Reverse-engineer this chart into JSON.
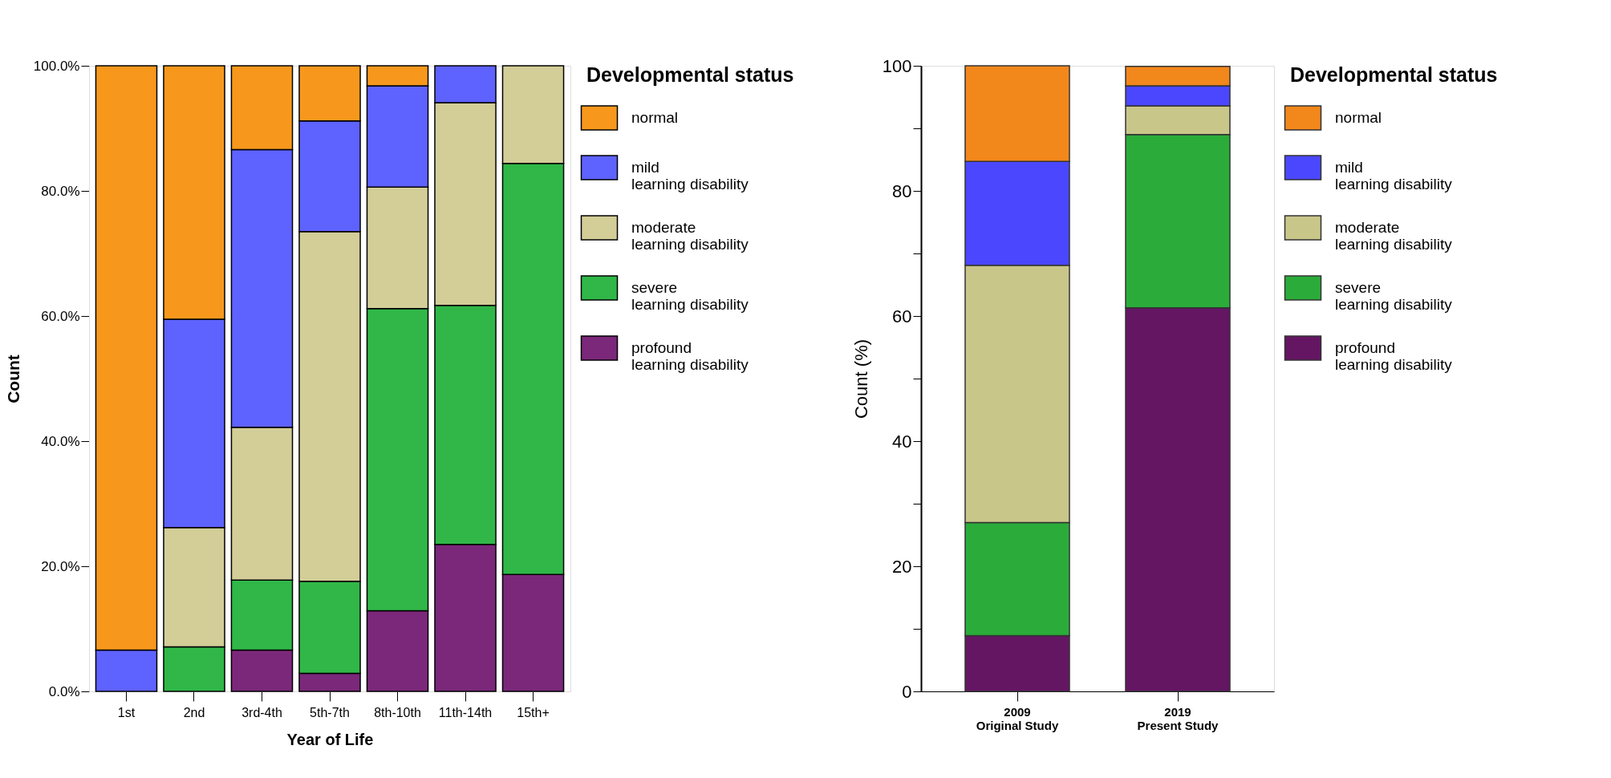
{
  "chart_data": [
    {
      "type": "bar",
      "stacked": true,
      "xlabel": "Year of Life",
      "ylabel": "Count",
      "legend_title": "Developmental status",
      "legend": "right",
      "grid": false,
      "categories": [
        "1st",
        "2nd",
        "3rd-4th",
        "5th-7th",
        "8th-10th",
        "11th-14th",
        "15th+"
      ],
      "ylim": [
        0,
        100
      ],
      "yticks": [
        {
          "value": 0,
          "label": "0.0%"
        },
        {
          "value": 20,
          "label": "20.0%"
        },
        {
          "value": 40,
          "label": "40.0%"
        },
        {
          "value": 60,
          "label": "60.0%"
        },
        {
          "value": 80,
          "label": "80.0%"
        },
        {
          "value": 100,
          "label": "100.0%"
        }
      ],
      "series": [
        {
          "name": "profound\nlearning disability",
          "color": "#7b287a",
          "values": [
            null,
            null,
            6.6,
            2.9,
            12.9,
            23.5,
            18.7
          ]
        },
        {
          "name": "severe\nlearning disability",
          "color": "#30b748",
          "values": [
            null,
            7.1,
            11.2,
            14.7,
            48.3,
            38.2,
            65.7
          ]
        },
        {
          "name": "moderate\nlearning disability",
          "color": "#d3cd98",
          "values": [
            null,
            19.1,
            24.4,
            55.9,
            19.4,
            32.4,
            15.6
          ]
        },
        {
          "name": "mild\nlearning disability",
          "color": "#5e62fe",
          "values": [
            6.6,
            33.3,
            44.4,
            17.7,
            16.2,
            5.9,
            null
          ]
        },
        {
          "name": "normal",
          "color": "#f7981d",
          "values": [
            93.4,
            40.5,
            13.4,
            8.8,
            3.2,
            null,
            null
          ]
        }
      ]
    },
    {
      "type": "bar",
      "stacked": true,
      "ylabel": "Count (%)",
      "legend_title": "Developmental status",
      "legend": "right",
      "grid": false,
      "categories": [
        "2009\nOriginal Study",
        "2019\nPresent Study"
      ],
      "ylim": [
        0,
        100
      ],
      "yticks": [
        0,
        {
          "value": 10,
          "label": null
        },
        20,
        {
          "value": 30,
          "label": null
        },
        40,
        {
          "value": 50,
          "label": null
        },
        60,
        {
          "value": 70,
          "label": null
        },
        80,
        {
          "value": 90,
          "label": null
        },
        100
      ],
      "series": [
        {
          "name": "profound\nlearning disability",
          "color": "#641663",
          "values": [
            8.9,
            61.3
          ]
        },
        {
          "name": "severe\nlearning disability",
          "color": "#2bac3a",
          "values": [
            18.1,
            27.7
          ]
        },
        {
          "name": "moderate\nlearning disability",
          "color": "#c9c68a",
          "values": [
            41.1,
            4.6
          ]
        },
        {
          "name": "mild\nlearning disability",
          "color": "#4a47fe",
          "values": [
            16.6,
            3.2
          ]
        },
        {
          "name": "normal",
          "color": "#f2871c",
          "values": [
            15.3,
            3.1
          ]
        }
      ]
    }
  ]
}
